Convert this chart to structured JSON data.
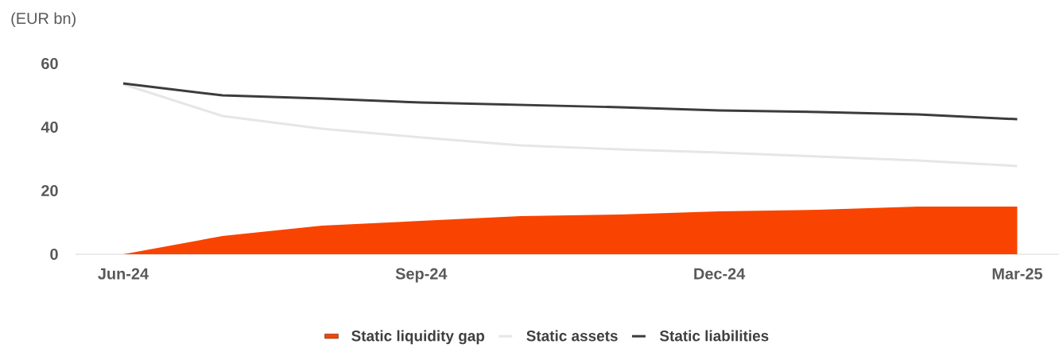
{
  "chart_data": {
    "type": "line",
    "ylabel": "(EUR bn)",
    "categories": [
      "Jun-24",
      null,
      null,
      "Sep-24",
      null,
      null,
      "Dec-24",
      null,
      null,
      "Mar-25"
    ],
    "series": [
      {
        "name": "Static liquidity gap",
        "type": "area",
        "color": "#f84400",
        "values": [
          0,
          5.75,
          9,
          10.5,
          12,
          12.5,
          13.5,
          14,
          15,
          15
        ]
      },
      {
        "name": "Static assets",
        "color": "#e6e6e6",
        "values": [
          53.5,
          43.5,
          39.5,
          36.75,
          34.25,
          33,
          32,
          30.75,
          29.5,
          27.75
        ]
      },
      {
        "name": "Static liabilities",
        "color": "#3c3c3c",
        "values": [
          53.75,
          50,
          49,
          47.75,
          47,
          46.25,
          45.25,
          44.75,
          44,
          42.5
        ]
      }
    ],
    "ylim": [
      0,
      60
    ],
    "yticks": [
      0,
      20,
      40,
      60
    ],
    "legend": "bottom",
    "grid": false
  }
}
